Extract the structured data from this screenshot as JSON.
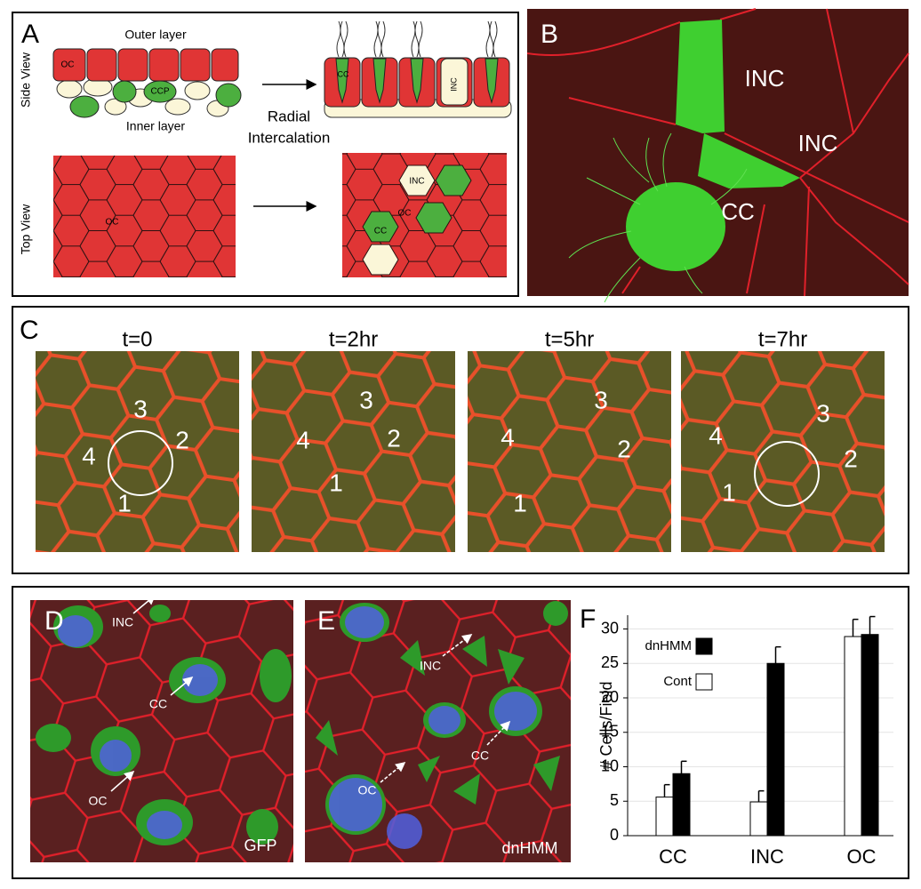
{
  "panels": {
    "A": {
      "label": "A",
      "side_view": "Side View",
      "top_view": "Top View",
      "outer_layer": "Outer layer",
      "inner_layer": "Inner layer",
      "arrow_label": [
        "Radial",
        "Intercalation"
      ],
      "side_before_cells": [
        "OC",
        "CCP"
      ],
      "side_after_cells": [
        "CC",
        "INC"
      ],
      "top_before_cell": "OC",
      "top_after_cells": [
        "INC",
        "OC",
        "CC"
      ]
    },
    "B": {
      "label": "B",
      "cells": [
        "INC",
        "INC",
        "CC"
      ]
    },
    "C": {
      "label": "C",
      "frames": [
        {
          "time": "t=0",
          "cells": [
            "3",
            "2",
            "4",
            "1"
          ]
        },
        {
          "time": "t=2hr",
          "cells": [
            "3",
            "2",
            "4",
            "1"
          ]
        },
        {
          "time": "t=5hr",
          "cells": [
            "3",
            "2",
            "4",
            "1"
          ]
        },
        {
          "time": "t=7hr",
          "cells": [
            "3",
            "2",
            "4",
            "1"
          ]
        }
      ]
    },
    "D": {
      "label": "D",
      "cells": [
        "INC",
        "CC",
        "OC"
      ],
      "condition": "GFP"
    },
    "E": {
      "label": "E",
      "cells": [
        "INC",
        "CC",
        "OC"
      ],
      "condition": "dnHMM"
    },
    "F": {
      "label": "F"
    }
  },
  "chart_data": {
    "type": "bar",
    "y_label": "# Cells/Field",
    "categories": [
      "CC",
      "INC",
      "OC"
    ],
    "series": [
      {
        "name": "dnHMM",
        "color": "#000000",
        "values": [
          9,
          25,
          29.2
        ],
        "errors": [
          1.8,
          2.4,
          2.6
        ]
      },
      {
        "name": "Cont",
        "color": "#ffffff",
        "values": [
          5.6,
          4.9,
          28.9
        ],
        "errors": [
          1.8,
          1.6,
          2.5
        ]
      }
    ],
    "ylim": [
      0,
      32
    ],
    "yticks": [
      0,
      5,
      10,
      15,
      20,
      25,
      30
    ],
    "grid": true,
    "legend": "upper-left"
  }
}
